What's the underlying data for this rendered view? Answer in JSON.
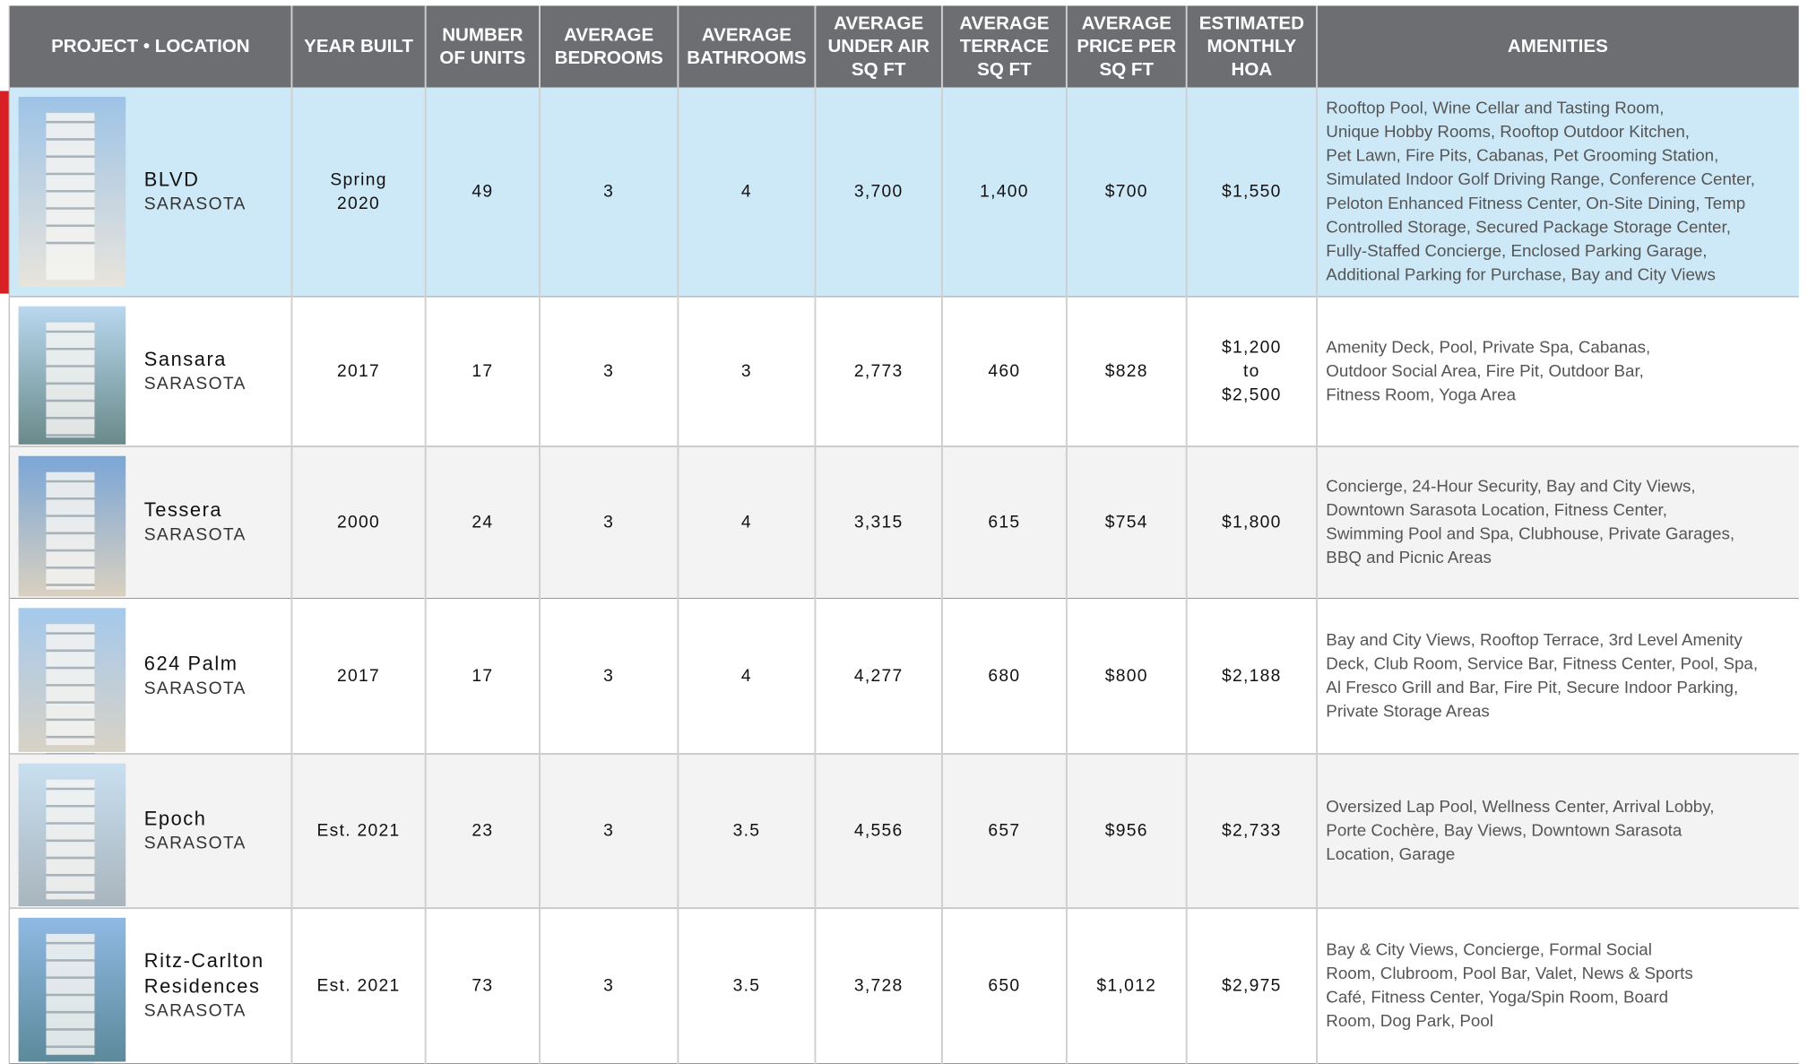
{
  "header": {
    "columns": [
      [
        "PROJECT • LOCATION"
      ],
      [
        "YEAR BUILT"
      ],
      [
        "NUMBER",
        "OF UNITS"
      ],
      [
        "AVERAGE",
        "BEDROOMS"
      ],
      [
        "AVERAGE",
        "BATHROOMS"
      ],
      [
        "AVERAGE",
        "UNDER AIR",
        "SQ FT"
      ],
      [
        "AVERAGE",
        "TERRACE",
        "SQ FT"
      ],
      [
        "AVERAGE",
        "PRICE PER",
        "SQ FT"
      ],
      [
        "ESTIMATED",
        "MONTHLY",
        "HOA"
      ],
      [
        "AMENITIES"
      ]
    ]
  },
  "rows": [
    {
      "name": [
        "BLVD"
      ],
      "location": "SARASOTA",
      "year_built": [
        "Spring",
        "2020"
      ],
      "units": "49",
      "bedrooms": "3",
      "bathrooms": "4",
      "under_air": "3,700",
      "terrace": "1,400",
      "price": "$700",
      "hoa": [
        "$1,550"
      ],
      "amenities": [
        "Rooftop Pool, Wine Cellar and Tasting Room,",
        "Unique Hobby Rooms, Rooftop Outdoor Kitchen,",
        "Pet Lawn, Fire Pits, Cabanas, Pet Grooming Station,",
        "Simulated Indoor Golf Driving Range, Conference Center,",
        "Peloton Enhanced Fitness Center, On-Site Dining, Temp",
        "Controlled Storage, Secured Package Storage Center,",
        "Fully-Staffed Concierge, Enclosed Parking Garage,",
        "Additional Parking for Purchase, Bay and City Views"
      ]
    },
    {
      "name": [
        "Sansara"
      ],
      "location": "SARASOTA",
      "year_built": [
        "2017"
      ],
      "units": "17",
      "bedrooms": "3",
      "bathrooms": "3",
      "under_air": "2,773",
      "terrace": "460",
      "price": "$828",
      "hoa": [
        "$1,200",
        "to",
        "$2,500"
      ],
      "amenities": [
        "Amenity Deck, Pool, Private Spa, Cabanas,",
        "Outdoor Social Area, Fire Pit, Outdoor Bar,",
        "Fitness Room, Yoga Area"
      ]
    },
    {
      "name": [
        "Tessera"
      ],
      "location": "SARASOTA",
      "year_built": [
        "2000"
      ],
      "units": "24",
      "bedrooms": "3",
      "bathrooms": "4",
      "under_air": "3,315",
      "terrace": "615",
      "price": "$754",
      "hoa": [
        "$1,800"
      ],
      "amenities": [
        "Concierge, 24-Hour Security, Bay and City Views,",
        "Downtown Sarasota Location, Fitness Center,",
        "Swimming Pool and Spa, Clubhouse, Private Garages,",
        "BBQ and Picnic Areas"
      ]
    },
    {
      "name": [
        "624 Palm"
      ],
      "location": "SARASOTA",
      "year_built": [
        "2017"
      ],
      "units": "17",
      "bedrooms": "3",
      "bathrooms": "4",
      "under_air": "4,277",
      "terrace": "680",
      "price": "$800",
      "hoa": [
        "$2,188"
      ],
      "amenities": [
        "Bay and City Views, Rooftop Terrace, 3rd Level Amenity",
        "Deck, Club Room, Service Bar, Fitness Center, Pool, Spa,",
        "Al Fresco Grill and Bar, Fire Pit, Secure Indoor Parking,",
        "Private Storage Areas"
      ]
    },
    {
      "name": [
        "Epoch"
      ],
      "location": "SARASOTA",
      "year_built": [
        "Est. 2021"
      ],
      "units": "23",
      "bedrooms": "3",
      "bathrooms": "3.5",
      "under_air": "4,556",
      "terrace": "657",
      "price": "$956",
      "hoa": [
        "$2,733"
      ],
      "amenities": [
        "Oversized Lap Pool, Wellness Center, Arrival Lobby,",
        "Porte Cochère, Bay Views, Downtown Sarasota",
        "Location, Garage"
      ]
    },
    {
      "name": [
        "Ritz-Carlton",
        "Residences"
      ],
      "location": "SARASOTA",
      "year_built": [
        "Est. 2021"
      ],
      "units": "73",
      "bedrooms": "3",
      "bathrooms": "3.5",
      "under_air": "3,728",
      "terrace": "650",
      "price": "$1,012",
      "hoa": [
        "$2,975"
      ],
      "amenities": [
        "Bay & City Views, Concierge, Formal Social",
        "Room, Clubroom, Pool Bar, Valet, News & Sports",
        "Café, Fitness Center, Yoga/Spin Room, Board",
        "Room, Dog Park, Pool"
      ]
    }
  ]
}
